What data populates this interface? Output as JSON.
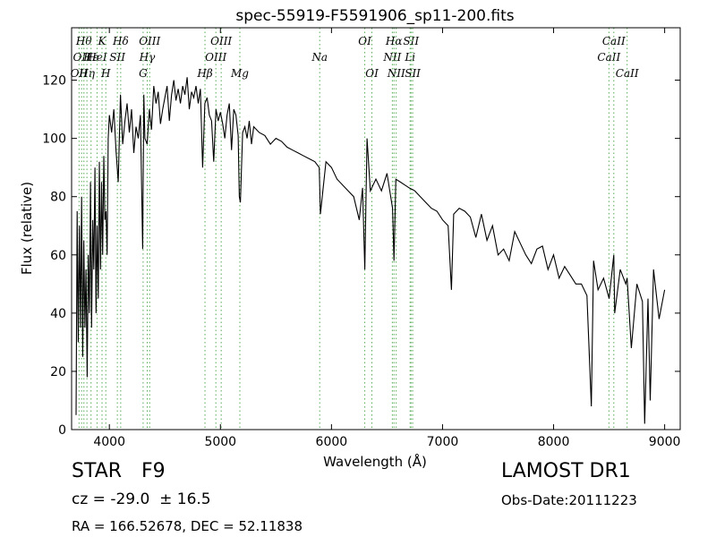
{
  "chart_data": {
    "type": "line",
    "title": "spec-55919-F5591906_sp11-200.fits",
    "xlabel": "Wavelength (Å)",
    "ylabel": "Flux (relative)",
    "xlim": [
      3660,
      9140
    ],
    "ylim": [
      0,
      138
    ],
    "xticks": [
      4000,
      5000,
      6000,
      7000,
      8000,
      9000
    ],
    "yticks": [
      0,
      20,
      40,
      60,
      80,
      100,
      120
    ],
    "grid": false,
    "line_color": "#000000",
    "marker_color": "#55aa55",
    "series": [
      {
        "x": [
          3700,
          3710,
          3720,
          3730,
          3740,
          3750,
          3760,
          3770,
          3780,
          3790,
          3800,
          3810,
          3820,
          3830,
          3840,
          3850,
          3860,
          3870,
          3880,
          3890,
          3900,
          3910,
          3920,
          3930,
          3940,
          3950,
          3960,
          3970,
          3980,
          3990,
          4000,
          4020,
          4040,
          4060,
          4080,
          4100,
          4120,
          4140,
          4160,
          4180,
          4200,
          4220,
          4240,
          4260,
          4280,
          4300,
          4310,
          4320,
          4340,
          4360,
          4380,
          4400,
          4420,
          4440,
          4460,
          4480,
          4500,
          4520,
          4540,
          4560,
          4580,
          4600,
          4620,
          4640,
          4660,
          4680,
          4700,
          4720,
          4740,
          4760,
          4780,
          4800,
          4820,
          4840,
          4860,
          4880,
          4900,
          4920,
          4940,
          4960,
          4980,
          5000,
          5020,
          5040,
          5060,
          5080,
          5100,
          5120,
          5140,
          5160,
          5170,
          5180,
          5200,
          5220,
          5240,
          5260,
          5280,
          5300,
          5350,
          5400,
          5450,
          5500,
          5550,
          5600,
          5650,
          5700,
          5750,
          5800,
          5850,
          5890,
          5900,
          5950,
          6000,
          6050,
          6100,
          6150,
          6200,
          6250,
          6280,
          6300,
          6320,
          6350,
          6400,
          6450,
          6500,
          6550,
          6563,
          6580,
          6620,
          6660,
          6700,
          6750,
          6800,
          6850,
          6900,
          6950,
          7000,
          7050,
          7080,
          7100,
          7150,
          7200,
          7250,
          7300,
          7350,
          7400,
          7450,
          7500,
          7550,
          7600,
          7650,
          7700,
          7750,
          7800,
          7850,
          7900,
          7950,
          8000,
          8050,
          8100,
          8150,
          8200,
          8250,
          8300,
          8340,
          8360,
          8400,
          8450,
          8500,
          8542,
          8550,
          8600,
          8650,
          8662,
          8700,
          8750,
          8800,
          8820,
          8850,
          8870,
          8900,
          8950,
          9000
        ],
        "y": [
          5,
          75,
          30,
          70,
          35,
          80,
          25,
          65,
          35,
          55,
          18,
          60,
          40,
          85,
          35,
          72,
          55,
          90,
          40,
          70,
          45,
          92,
          55,
          85,
          60,
          94,
          72,
          75,
          60,
          100,
          108,
          102,
          110,
          96,
          85,
          115,
          98,
          106,
          112,
          102,
          110,
          95,
          104,
          100,
          108,
          62,
          115,
          100,
          98,
          110,
          103,
          118,
          112,
          116,
          105,
          110,
          114,
          118,
          106,
          115,
          120,
          113,
          117,
          112,
          118,
          115,
          121,
          110,
          116,
          114,
          118,
          112,
          117,
          90,
          112,
          114,
          108,
          106,
          92,
          110,
          106,
          109,
          105,
          100,
          108,
          112,
          96,
          110,
          108,
          101,
          80,
          78,
          102,
          104,
          100,
          106,
          98,
          104,
          102,
          101,
          98,
          100,
          99,
          97,
          96,
          95,
          94,
          93,
          92,
          90,
          74,
          92,
          90,
          86,
          84,
          82,
          80,
          72,
          83,
          55,
          100,
          82,
          86,
          82,
          88,
          76,
          58,
          86,
          85,
          84,
          83,
          82,
          80,
          78,
          76,
          75,
          72,
          70,
          48,
          74,
          76,
          75,
          73,
          66,
          74,
          65,
          70,
          60,
          62,
          58,
          68,
          64,
          60,
          57,
          62,
          63,
          55,
          60,
          52,
          56,
          53,
          50,
          50,
          46,
          8,
          58,
          48,
          52,
          45,
          60,
          40,
          55,
          50,
          52,
          28,
          50,
          44,
          2,
          45,
          10,
          55,
          38,
          48
        ]
      }
    ],
    "markers": [
      {
        "wl": 3727,
        "labels": [
          "OII"
        ],
        "row": 2
      },
      {
        "wl": 3750,
        "labels": [
          "OII"
        ],
        "row": 1
      },
      {
        "wl": 3771,
        "labels": [
          "Hθ"
        ],
        "row": 0
      },
      {
        "wl": 3798,
        "labels": [
          "Hη"
        ],
        "row": 2
      },
      {
        "wl": 3835,
        "labels": [
          "Hε"
        ],
        "row": 1
      },
      {
        "wl": 3889,
        "labels": [
          "HeI"
        ],
        "row": 1
      },
      {
        "wl": 3934,
        "labels": [
          "K"
        ],
        "row": 0
      },
      {
        "wl": 3968,
        "labels": [
          "H"
        ],
        "row": 2
      },
      {
        "wl": 4072,
        "labels": [
          "SII"
        ],
        "row": 1
      },
      {
        "wl": 4102,
        "labels": [
          "Hδ"
        ],
        "row": 0
      },
      {
        "wl": 4304,
        "labels": [
          "G"
        ],
        "row": 2
      },
      {
        "wl": 4341,
        "labels": [
          "Hγ"
        ],
        "row": 1
      },
      {
        "wl": 4363,
        "labels": [
          "OIII"
        ],
        "row": 0
      },
      {
        "wl": 4861,
        "labels": [
          "Hβ"
        ],
        "row": 2
      },
      {
        "wl": 4959,
        "labels": [
          "OIII"
        ],
        "row": 1
      },
      {
        "wl": 5007,
        "labels": [
          "OIII"
        ],
        "row": 0
      },
      {
        "wl": 5175,
        "labels": [
          "Mg"
        ],
        "row": 2
      },
      {
        "wl": 5894,
        "labels": [
          "Na"
        ],
        "row": 1
      },
      {
        "wl": 6300,
        "labels": [
          "OI"
        ],
        "row": 0
      },
      {
        "wl": 6364,
        "labels": [
          "OI"
        ],
        "row": 2
      },
      {
        "wl": 6548,
        "labels": [
          "NII"
        ],
        "row": 1
      },
      {
        "wl": 6563,
        "labels": [
          "Hα"
        ],
        "row": 0
      },
      {
        "wl": 6583,
        "labels": [
          "NII"
        ],
        "row": 2
      },
      {
        "wl": 6708,
        "labels": [
          "Li"
        ],
        "row": 1
      },
      {
        "wl": 6716,
        "labels": [
          "SII"
        ],
        "row": 0
      },
      {
        "wl": 6731,
        "labels": [
          "SII"
        ],
        "row": 2
      },
      {
        "wl": 8498,
        "labels": [
          "CaII"
        ],
        "row": 1
      },
      {
        "wl": 8542,
        "labels": [
          "CaII"
        ],
        "row": 0
      },
      {
        "wl": 8662,
        "labels": [
          "CaII"
        ],
        "row": 2
      }
    ]
  },
  "info": {
    "class": "STAR",
    "subclass": "F9",
    "survey": "LAMOST DR1",
    "cz_label": "cz = -29.0  ± 16.5",
    "obs_date": "Obs-Date:20111223",
    "radec": "RA = 166.52678, DEC = 52.11838"
  }
}
